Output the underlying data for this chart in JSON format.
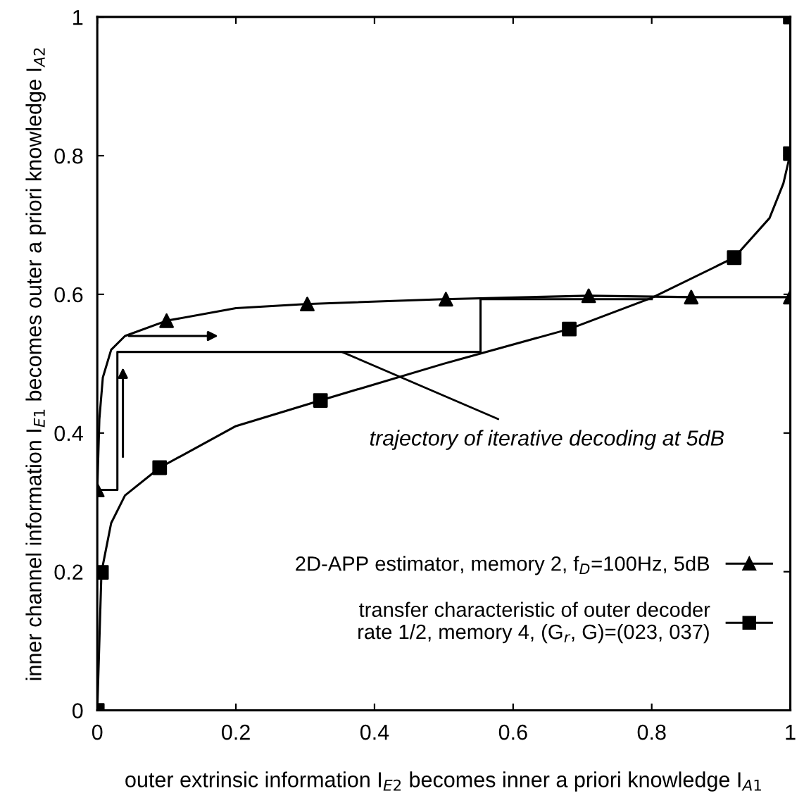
{
  "chart_data": {
    "type": "line",
    "xlabel": "outer extrinsic information I$_{E2}$ becomes inner a priori knowledge I$_{A1}$",
    "ylabel": "inner channel information I$_{E1}$ becomes outer a priori knowledge I$_{A2}$",
    "xlim": [
      0,
      1
    ],
    "ylim": [
      0,
      1
    ],
    "xticks": [
      0,
      0.2,
      0.4,
      0.6,
      0.8,
      1
    ],
    "yticks": [
      0,
      0.2,
      0.4,
      0.6,
      0.8,
      1
    ],
    "grid": false,
    "legend": "bottom right",
    "series": [
      {
        "name": "2D-APP estimator, memory 2, f$_{D}$=100Hz, 5dB",
        "color": "#000000",
        "marker": "none",
        "x": [
          0,
          0.003,
          0.008,
          0.02,
          0.04,
          0.1,
          0.2,
          0.3,
          0.5,
          0.709,
          0.857,
          1
        ],
        "values": [
          0.318,
          0.42,
          0.48,
          0.52,
          0.54,
          0.562,
          0.58,
          0.586,
          0.593,
          0.598,
          0.596,
          0.596
        ]
      },
      {
        "type": "scatter",
        "color": "#000000",
        "marker": "triangle",
        "x": [
          0,
          0.1,
          0.303,
          0.503,
          0.709,
          0.857,
          1
        ],
        "values": [
          0.318,
          0.562,
          0.586,
          0.593,
          0.598,
          0.596,
          0.596
        ]
      },
      {
        "name": "transfer characteristic of outer decoder\nrate 1/2, memory 4, (G$_{r}$, G)=(023, 037)",
        "color": "#000000",
        "marker": "none",
        "x": [
          0,
          0.006,
          0.02,
          0.04,
          0.09,
          0.2,
          0.322,
          0.5,
          0.681,
          0.8,
          0.919,
          0.97,
          0.99,
          1,
          1
        ],
        "values": [
          0,
          0.199,
          0.27,
          0.31,
          0.35,
          0.41,
          0.447,
          0.5,
          0.55,
          0.595,
          0.653,
          0.71,
          0.76,
          0.803,
          1
        ]
      },
      {
        "type": "scatter",
        "color": "#000000",
        "marker": "square",
        "x": [
          0,
          0.006,
          0.09,
          0.322,
          0.681,
          0.919,
          1,
          1
        ],
        "values": [
          0,
          0.199,
          0.35,
          0.447,
          0.55,
          0.653,
          0.803,
          1
        ]
      },
      {
        "color": "#000000",
        "marker": "none",
        "x": [
          0,
          0.029,
          0.029,
          0.553,
          0.553,
          0.8
        ],
        "values": [
          0.318,
          0.318,
          0.517,
          0.517,
          0.593,
          0.593
        ]
      }
    ],
    "annotations": [
      {
        "text": "trajectory of iterative decoding at 5dB",
        "x": 0.353,
        "y": 0.517
      }
    ]
  }
}
